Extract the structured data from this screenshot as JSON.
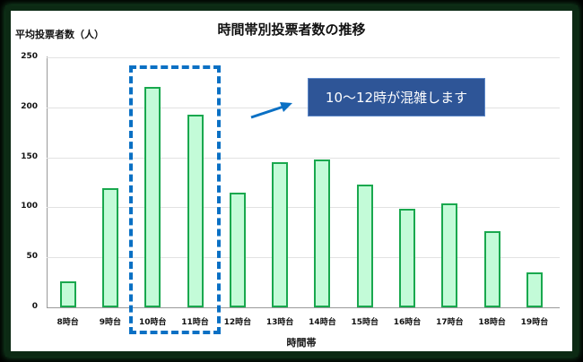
{
  "chart_data": {
    "type": "bar",
    "title": "時間帯別投票者数の推移",
    "xlabel": "時間帯",
    "ylabel": "平均投票者数（人）",
    "ylim": [
      0,
      250
    ],
    "yticks": [
      0,
      50,
      100,
      150,
      200,
      250
    ],
    "grid": true,
    "categories": [
      "8時台",
      "9時台",
      "10時台",
      "11時台",
      "12時台",
      "13時台",
      "14時台",
      "15時台",
      "16時台",
      "17時台",
      "18時台",
      "19時台"
    ],
    "values": [
      26,
      119,
      220,
      193,
      115,
      145,
      148,
      123,
      99,
      104,
      76,
      35
    ],
    "annotation": "10～12時が混雑します",
    "highlight_categories": [
      "10時台",
      "11時台"
    ],
    "colors": {
      "bar_fill": "#c3fbd8",
      "bar_border": "#19a84e",
      "highlight_box": "#0a70c4",
      "callout_bg": "#2e5597"
    }
  },
  "title": "時間帯別投票者数の推移",
  "ylabel": "平均投票者数（人）",
  "xlabel": "時間帯",
  "annotation": "10～12時が混雑します",
  "yticks": [
    "250",
    "200",
    "150",
    "100",
    "50",
    "0"
  ],
  "categories": [
    "8時台",
    "9時台",
    "10時台",
    "11時台",
    "12時台",
    "13時台",
    "14時台",
    "15時台",
    "16時台",
    "17時台",
    "18時台",
    "19時台"
  ]
}
